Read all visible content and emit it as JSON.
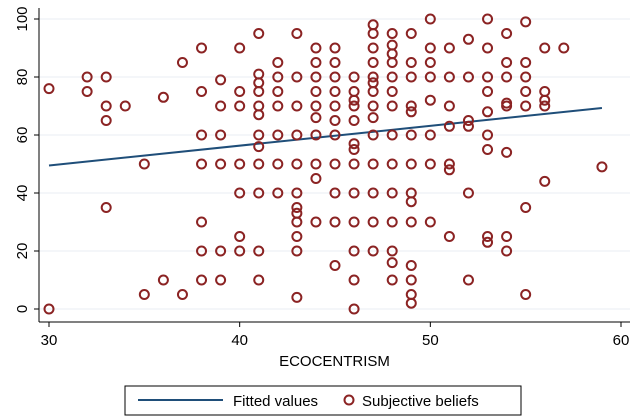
{
  "chart_data": {
    "type": "scatter",
    "title": "",
    "xlabel": "ECOCENTRISM",
    "ylabel": "",
    "xlim": [
      30,
      60
    ],
    "ylim": [
      0,
      100
    ],
    "xticks": [
      30,
      40,
      50,
      60
    ],
    "yticks": [
      0,
      20,
      40,
      60,
      80,
      100
    ],
    "grid": true,
    "legend_position": "bottom",
    "colors": {
      "fitted": "#1f4e79",
      "marker": "#8b2323",
      "grid": "#e8eef3"
    },
    "series": [
      {
        "name": "Subjective beliefs",
        "kind": "scatter",
        "points": [
          [
            30,
            76
          ],
          [
            30,
            0
          ],
          [
            32,
            80
          ],
          [
            32,
            75
          ],
          [
            33,
            80
          ],
          [
            33,
            70
          ],
          [
            33,
            65
          ],
          [
            33,
            35
          ],
          [
            34,
            70
          ],
          [
            35,
            50
          ],
          [
            35,
            5
          ],
          [
            36,
            73
          ],
          [
            36,
            10
          ],
          [
            37,
            85
          ],
          [
            37,
            5
          ],
          [
            38,
            90
          ],
          [
            38,
            75
          ],
          [
            38,
            60
          ],
          [
            38,
            50
          ],
          [
            38,
            30
          ],
          [
            38,
            20
          ],
          [
            38,
            10
          ],
          [
            39,
            79
          ],
          [
            39,
            70
          ],
          [
            39,
            60
          ],
          [
            39,
            50
          ],
          [
            39,
            20
          ],
          [
            39,
            10
          ],
          [
            40,
            90
          ],
          [
            40,
            75
          ],
          [
            40,
            70
          ],
          [
            40,
            50
          ],
          [
            40,
            40
          ],
          [
            40,
            25
          ],
          [
            40,
            20
          ],
          [
            41,
            95
          ],
          [
            41,
            81
          ],
          [
            41,
            78
          ],
          [
            41,
            75
          ],
          [
            41,
            70
          ],
          [
            41,
            67
          ],
          [
            41,
            60
          ],
          [
            41,
            56
          ],
          [
            41,
            50
          ],
          [
            41,
            40
          ],
          [
            41,
            20
          ],
          [
            41,
            10
          ],
          [
            42,
            85
          ],
          [
            42,
            80
          ],
          [
            42,
            75
          ],
          [
            42,
            70
          ],
          [
            42,
            60
          ],
          [
            42,
            50
          ],
          [
            42,
            40
          ],
          [
            43,
            95
          ],
          [
            43,
            80
          ],
          [
            43,
            70
          ],
          [
            43,
            60
          ],
          [
            43,
            50
          ],
          [
            43,
            40
          ],
          [
            43,
            35
          ],
          [
            43,
            33
          ],
          [
            43,
            30
          ],
          [
            43,
            25
          ],
          [
            43,
            20
          ],
          [
            43,
            4
          ],
          [
            44,
            90
          ],
          [
            44,
            85
          ],
          [
            44,
            80
          ],
          [
            44,
            75
          ],
          [
            44,
            70
          ],
          [
            44,
            66
          ],
          [
            44,
            60
          ],
          [
            44,
            50
          ],
          [
            44,
            45
          ],
          [
            44,
            30
          ],
          [
            45,
            90
          ],
          [
            45,
            85
          ],
          [
            45,
            80
          ],
          [
            45,
            75
          ],
          [
            45,
            70
          ],
          [
            45,
            65
          ],
          [
            45,
            60
          ],
          [
            45,
            50
          ],
          [
            45,
            40
          ],
          [
            45,
            30
          ],
          [
            45,
            15
          ],
          [
            46,
            80
          ],
          [
            46,
            75
          ],
          [
            46,
            72
          ],
          [
            46,
            70
          ],
          [
            46,
            65
          ],
          [
            46,
            57
          ],
          [
            46,
            55
          ],
          [
            46,
            50
          ],
          [
            46,
            40
          ],
          [
            46,
            30
          ],
          [
            46,
            20
          ],
          [
            46,
            10
          ],
          [
            46,
            0
          ],
          [
            47,
            98
          ],
          [
            47,
            95
          ],
          [
            47,
            90
          ],
          [
            47,
            85
          ],
          [
            47,
            80
          ],
          [
            47,
            78
          ],
          [
            47,
            75
          ],
          [
            47,
            70
          ],
          [
            47,
            66
          ],
          [
            47,
            60
          ],
          [
            47,
            50
          ],
          [
            47,
            40
          ],
          [
            47,
            30
          ],
          [
            47,
            20
          ],
          [
            48,
            95
          ],
          [
            48,
            91
          ],
          [
            48,
            88
          ],
          [
            48,
            85
          ],
          [
            48,
            80
          ],
          [
            48,
            75
          ],
          [
            48,
            70
          ],
          [
            48,
            60
          ],
          [
            48,
            50
          ],
          [
            48,
            40
          ],
          [
            48,
            30
          ],
          [
            48,
            20
          ],
          [
            48,
            16
          ],
          [
            48,
            10
          ],
          [
            49,
            95
          ],
          [
            49,
            85
          ],
          [
            49,
            80
          ],
          [
            49,
            70
          ],
          [
            49,
            68
          ],
          [
            49,
            60
          ],
          [
            49,
            50
          ],
          [
            49,
            40
          ],
          [
            49,
            37
          ],
          [
            49,
            30
          ],
          [
            49,
            15
          ],
          [
            49,
            10
          ],
          [
            49,
            5
          ],
          [
            49,
            2
          ],
          [
            50,
            100
          ],
          [
            50,
            90
          ],
          [
            50,
            85
          ],
          [
            50,
            80
          ],
          [
            50,
            72
          ],
          [
            50,
            60
          ],
          [
            50,
            50
          ],
          [
            50,
            30
          ],
          [
            51,
            90
          ],
          [
            51,
            80
          ],
          [
            51,
            70
          ],
          [
            51,
            63
          ],
          [
            51,
            50
          ],
          [
            51,
            48
          ],
          [
            51,
            25
          ],
          [
            52,
            93
          ],
          [
            52,
            80
          ],
          [
            52,
            65
          ],
          [
            52,
            63
          ],
          [
            52,
            40
          ],
          [
            52,
            10
          ],
          [
            53,
            100
          ],
          [
            53,
            90
          ],
          [
            53,
            80
          ],
          [
            53,
            75
          ],
          [
            53,
            68
          ],
          [
            53,
            60
          ],
          [
            53,
            55
          ],
          [
            53,
            25
          ],
          [
            53,
            23
          ],
          [
            54,
            95
          ],
          [
            54,
            85
          ],
          [
            54,
            80
          ],
          [
            54,
            71
          ],
          [
            54,
            70
          ],
          [
            54,
            54
          ],
          [
            54,
            25
          ],
          [
            54,
            20
          ],
          [
            55,
            99
          ],
          [
            55,
            85
          ],
          [
            55,
            80
          ],
          [
            55,
            75
          ],
          [
            55,
            70
          ],
          [
            55,
            35
          ],
          [
            55,
            5
          ],
          [
            56,
            90
          ],
          [
            56,
            75
          ],
          [
            56,
            72
          ],
          [
            56,
            70
          ],
          [
            56,
            44
          ],
          [
            57,
            90
          ],
          [
            59,
            49
          ]
        ]
      },
      {
        "name": "Fitted values",
        "kind": "line",
        "points": [
          [
            30,
            49.5
          ],
          [
            59,
            69.3
          ]
        ]
      }
    ]
  }
}
